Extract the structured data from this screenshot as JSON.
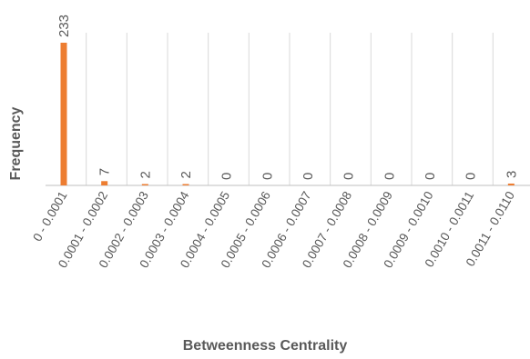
{
  "chart_data": {
    "type": "bar",
    "title": "",
    "xlabel": "Betweenness Centrality",
    "ylabel": "Frequency",
    "categories": [
      "0 - 0.0001",
      "0.0001 - 0.0002",
      "0.0002 - 0.0003",
      "0.0003 - 0.0004",
      "0.0004 - 0.0005",
      "0.0005 - 0.0006",
      "0.0006 - 0.0007",
      "0.0007 - 0.0008",
      "0.0008 - 0.0009",
      "0.0009 - 0.0010",
      "0.0010 - 0.0011",
      "0.0011 - 0.0110"
    ],
    "values": [
      233,
      7,
      2,
      2,
      0,
      0,
      0,
      0,
      0,
      0,
      0,
      3
    ],
    "ylim": [
      0,
      233
    ],
    "grid": "vertical",
    "legend": "none",
    "bar_color": "#ED7D31"
  }
}
